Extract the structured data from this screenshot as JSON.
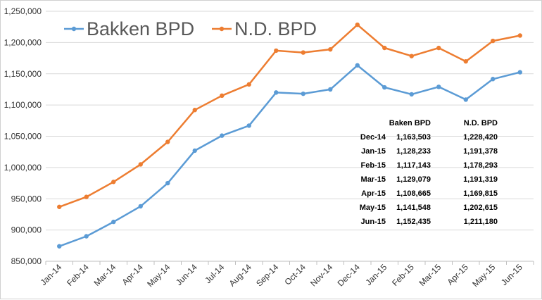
{
  "chart_data": {
    "type": "line",
    "title": "",
    "xlabel": "",
    "ylabel": "",
    "categories": [
      "Jan-14",
      "Feb-14",
      "Mar-14",
      "Apr-14",
      "May-14",
      "Jun-14",
      "Jul-14",
      "Aug-14",
      "Sep-14",
      "Oct-14",
      "Nov-14",
      "Dec-14",
      "Jan-15",
      "Feb-15",
      "Mar-15",
      "Apr-15",
      "May-15",
      "Jun-15"
    ],
    "ylim": [
      850000,
      1250000
    ],
    "ytick_values": [
      850000,
      900000,
      950000,
      1000000,
      1050000,
      1100000,
      1150000,
      1200000,
      1250000
    ],
    "ytick_labels": [
      "850,000",
      "900,000",
      "950,000",
      "1,000,000",
      "1,050,000",
      "1,100,000",
      "1,150,000",
      "1,200,000",
      "1,250,000"
    ],
    "grid": true,
    "legend_position": "top-left",
    "series": [
      {
        "name": "Bakken BPD",
        "color": "#5B9BD5",
        "values": [
          874000,
          890000,
          913000,
          938000,
          975000,
          1027000,
          1051000,
          1067000,
          1120000,
          1118000,
          1125000,
          1163503,
          1128233,
          1117143,
          1129079,
          1108665,
          1141548,
          1152435
        ]
      },
      {
        "name": "N.D. BPD",
        "color": "#ED7D31",
        "values": [
          937000,
          953000,
          977000,
          1005000,
          1041000,
          1092000,
          1115000,
          1133000,
          1187000,
          1184000,
          1189000,
          1228420,
          1191378,
          1178293,
          1191319,
          1169815,
          1202615,
          1211180
        ]
      }
    ],
    "annotation_table": {
      "headers": [
        "",
        "Baken BPD",
        "N.D. BPD"
      ],
      "rows": [
        [
          "Dec-14",
          "1,163,503",
          "1,228,420"
        ],
        [
          "Jan-15",
          "1,128,233",
          "1,191,378"
        ],
        [
          "Feb-15",
          "1,117,143",
          "1,178,293"
        ],
        [
          "Mar-15",
          "1,129,079",
          "1,191,319"
        ],
        [
          "Apr-15",
          "1,108,665",
          "1,169,815"
        ],
        [
          "May-15",
          "1,141,548",
          "1,202,615"
        ],
        [
          "Jun-15",
          "1,152,435",
          "1,211,180"
        ]
      ]
    }
  }
}
